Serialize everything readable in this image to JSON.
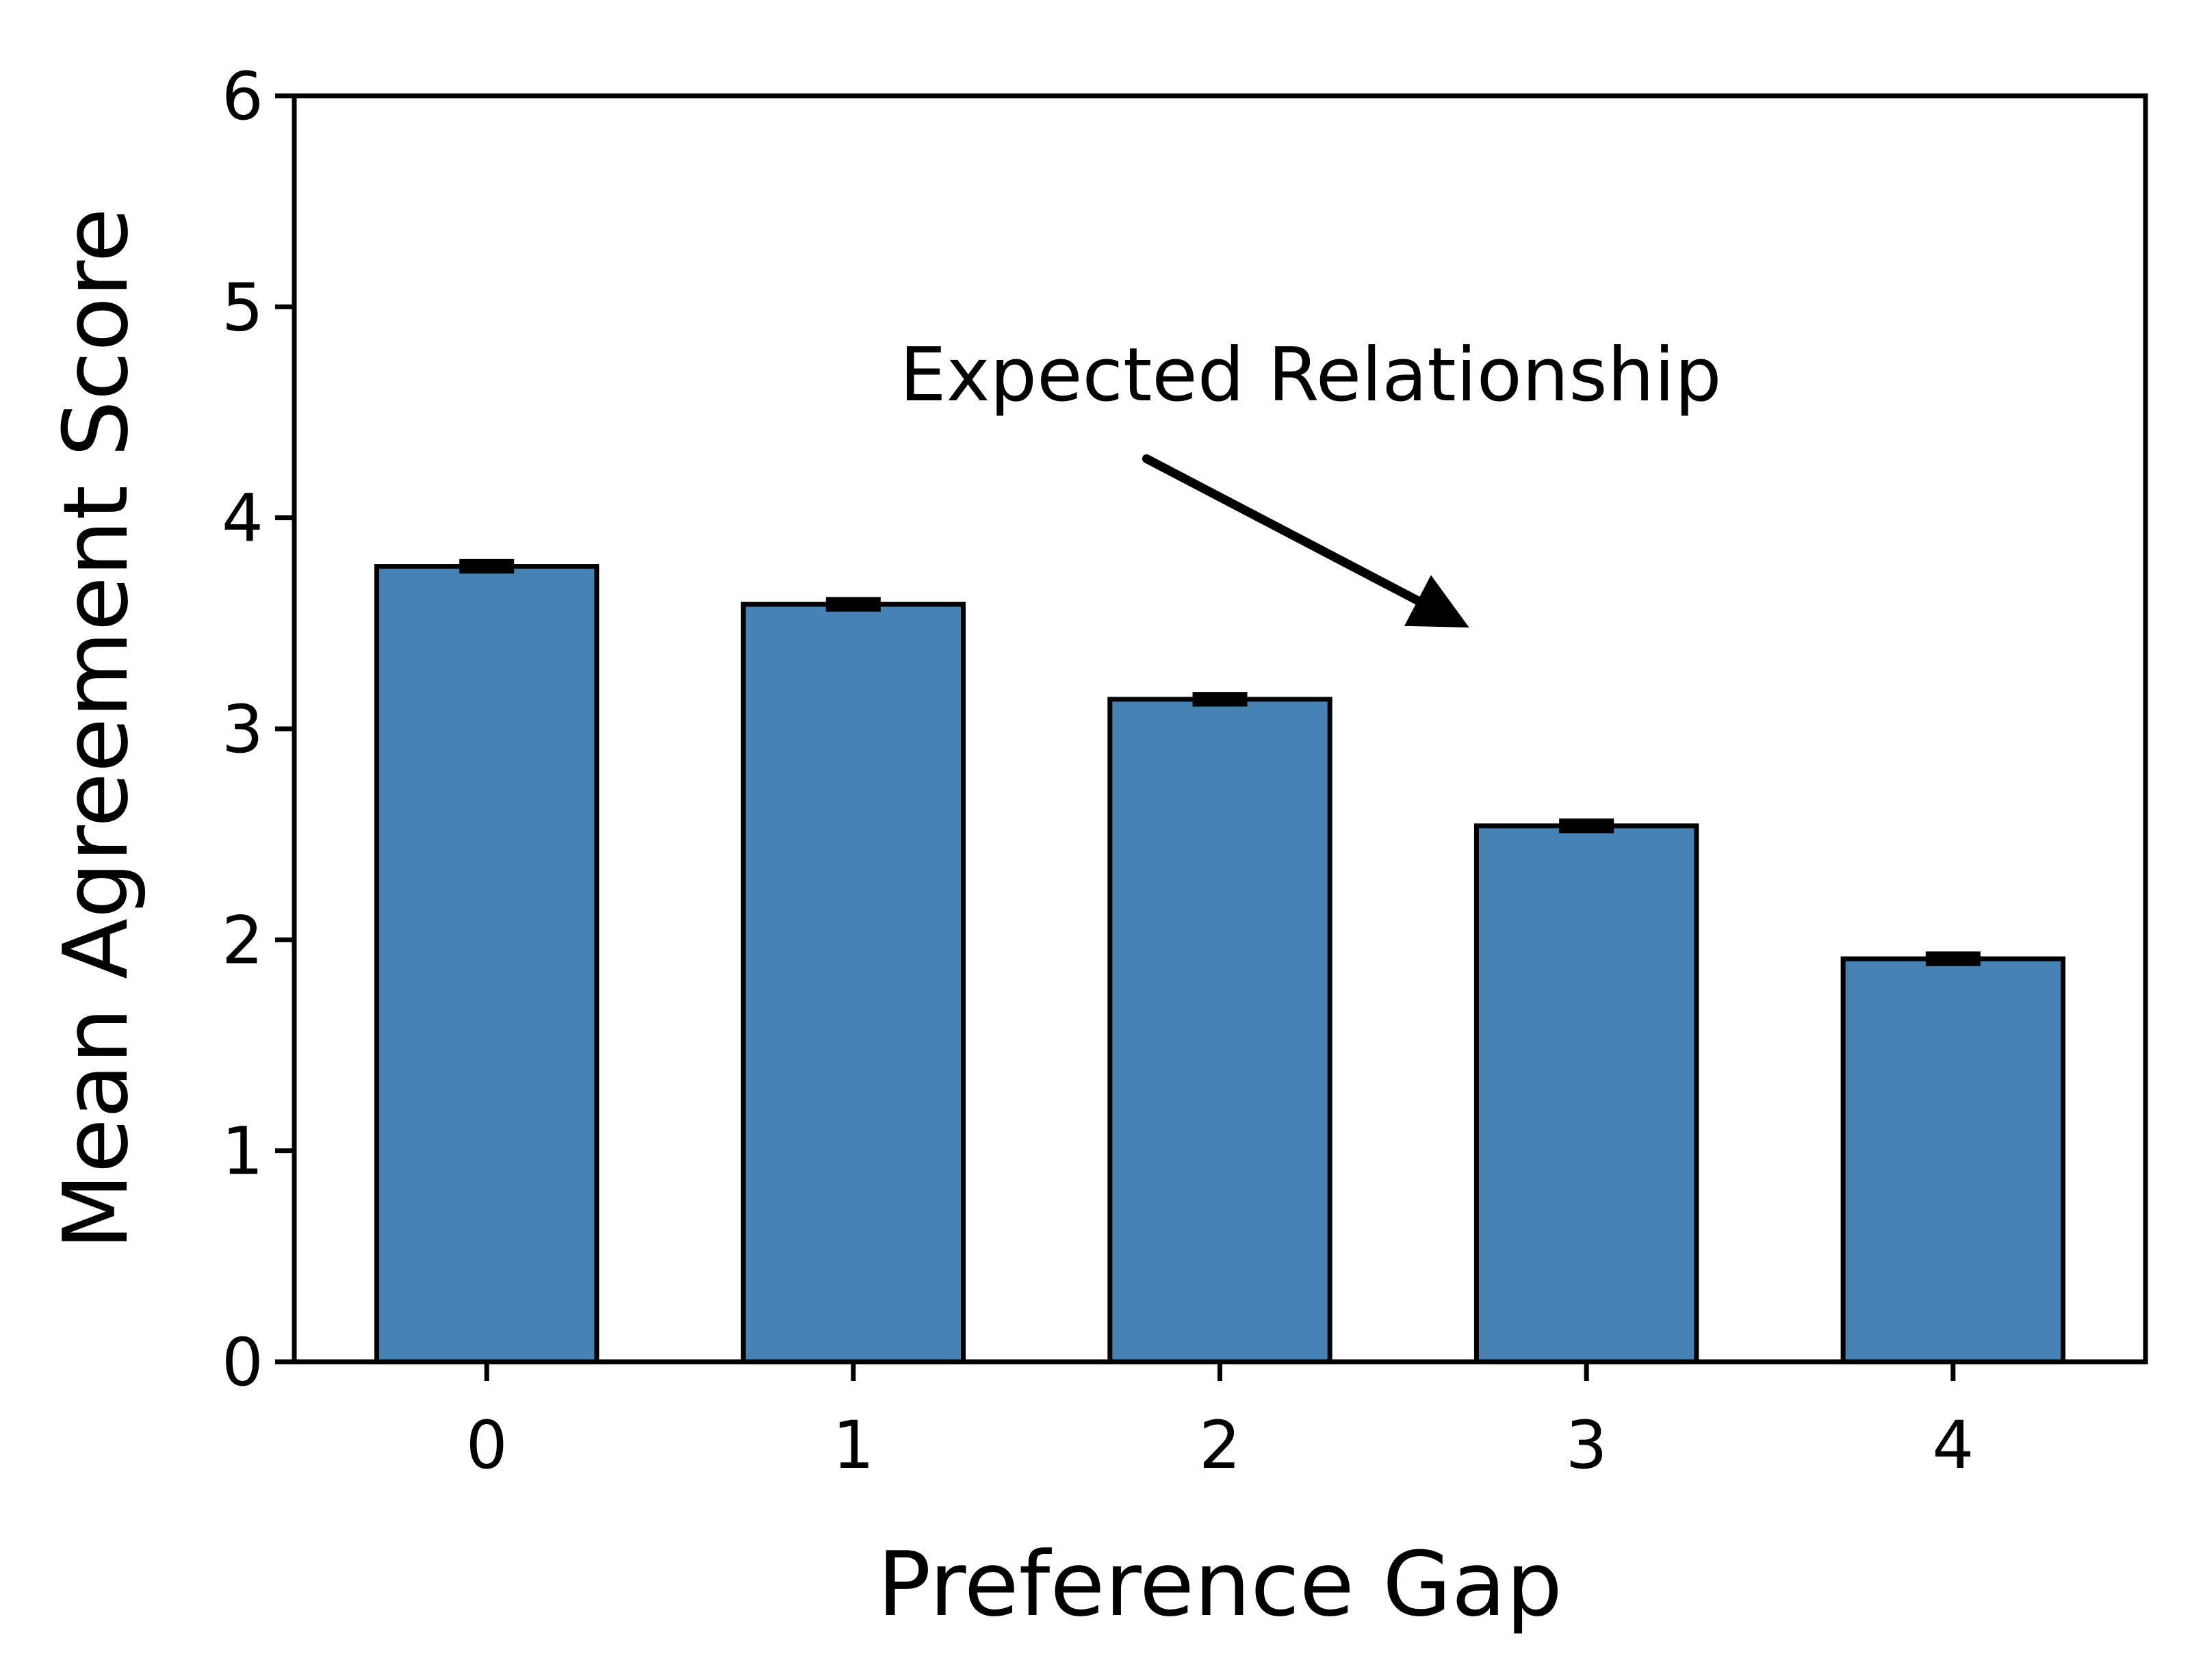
{
  "chart_data": {
    "type": "bar",
    "xlabel": "Preference Gap",
    "ylabel": "Mean Agreement Score",
    "categories": [
      "0",
      "1",
      "2",
      "3",
      "4"
    ],
    "values": [
      3.77,
      3.59,
      3.14,
      2.54,
      1.91
    ],
    "errors": [
      0.02,
      0.02,
      0.02,
      0.02,
      0.02
    ],
    "ylim": [
      0,
      6
    ],
    "yticks": [
      "0",
      "1",
      "2",
      "3",
      "4",
      "5",
      "6"
    ],
    "grid": false,
    "annotation": {
      "text": "Expected Relationship",
      "arrow_tail": {
        "category": 1.8,
        "value": 4.28
      },
      "arrow_head": {
        "category": 2.68,
        "value": 3.48
      }
    },
    "colors": {
      "bar_fill": "#4682b4",
      "edge": "#000000"
    }
  }
}
